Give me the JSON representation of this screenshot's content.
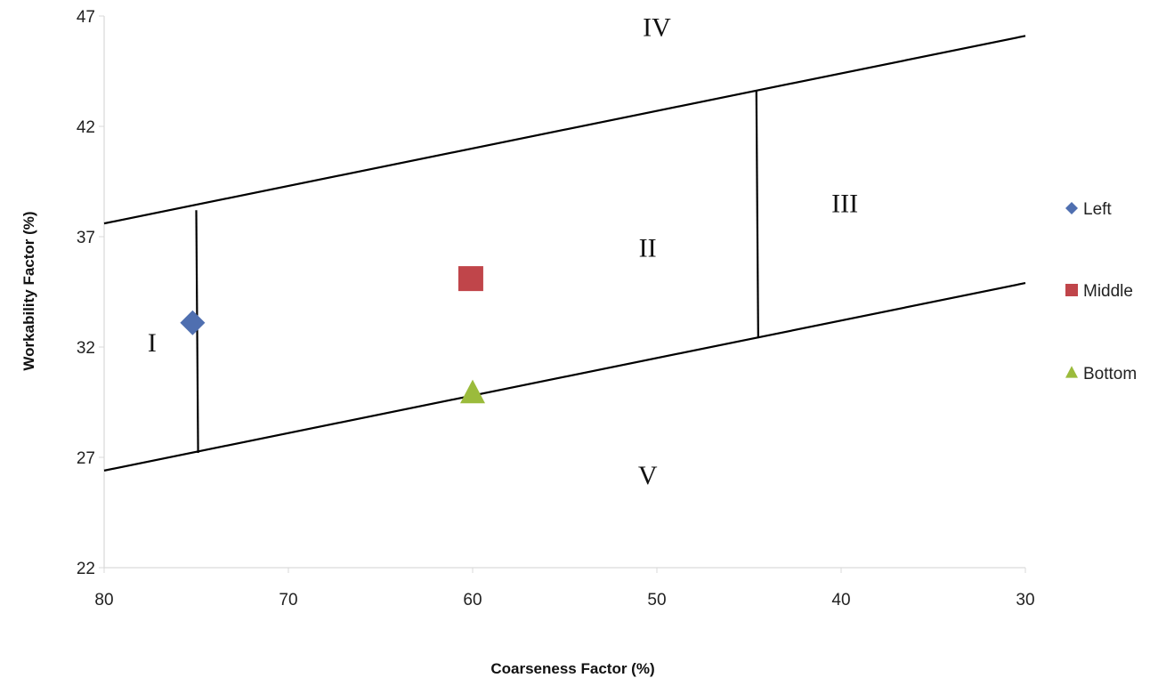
{
  "chart_data": {
    "type": "scatter",
    "title": "",
    "xlabel": "Coarseness Factor (%)",
    "ylabel": "Workability Factor (%)",
    "xlim": [
      80,
      30
    ],
    "x_reversed": true,
    "ylim": [
      22,
      47
    ],
    "x_ticks": [
      "80",
      "70",
      "60",
      "50",
      "40",
      "30"
    ],
    "y_ticks": [
      "22",
      "27",
      "32",
      "37",
      "42",
      "47"
    ],
    "grid": false,
    "legend_position": "right",
    "series": [
      {
        "name": "Left",
        "marker": "diamond",
        "color": "#4f6fb0",
        "points": [
          [
            75.2,
            33.1
          ]
        ]
      },
      {
        "name": "Middle",
        "marker": "square",
        "color": "#c0454a",
        "points": [
          [
            60.1,
            35.1
          ]
        ]
      },
      {
        "name": "Bottom",
        "marker": "triangle",
        "color": "#9bbb3c",
        "points": [
          [
            60.0,
            29.9
          ]
        ]
      }
    ],
    "boundary_lines": [
      {
        "name": "upper-boundary",
        "from": [
          80,
          37.6
        ],
        "to": [
          30,
          46.1
        ]
      },
      {
        "name": "lower-boundary",
        "from": [
          80,
          26.4
        ],
        "to": [
          30,
          34.9
        ]
      },
      {
        "name": "zone-divider-left",
        "from": [
          75.0,
          38.2
        ],
        "to": [
          74.9,
          27.2
        ]
      },
      {
        "name": "zone-divider-right",
        "from": [
          44.6,
          43.6
        ],
        "to": [
          44.5,
          32.4
        ]
      }
    ],
    "annotations": [
      {
        "text": "I",
        "x": 77.4,
        "y": 31.8
      },
      {
        "text": "II",
        "x": 50.5,
        "y": 36.1
      },
      {
        "text": "III",
        "x": 39.8,
        "y": 38.1
      },
      {
        "text": "IV",
        "x": 50.0,
        "y": 46.1
      },
      {
        "text": "V",
        "x": 50.5,
        "y": 25.8
      }
    ]
  },
  "colors": {
    "axis": "#d9d9d9",
    "boundary": "#000000"
  }
}
